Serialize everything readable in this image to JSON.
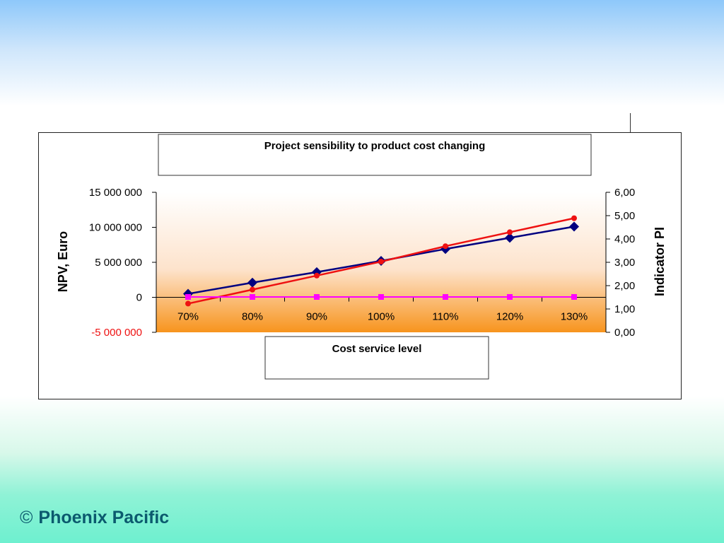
{
  "footer": {
    "copyright_symbol": "©",
    "brand": "Phoenix Pacific"
  },
  "colors": {
    "npv_series": "#000080",
    "pi_series": "#ee1111",
    "flat_series": "#ff00ff",
    "negative_label": "#ee1111",
    "plot_bg_top": "#ffffff",
    "plot_bg_bottom": "#f7941d"
  },
  "chart_data": {
    "type": "line",
    "title": "Project sensibility to product cost changing",
    "xlabel": "Cost service level",
    "ylabel": "NPV, Euro",
    "y2label": "Indicator PI",
    "categories": [
      "70%",
      "80%",
      "90%",
      "100%",
      "110%",
      "120%",
      "130%"
    ],
    "ylim": [
      -5000000,
      15000000
    ],
    "y_ticks": [
      "15 000 000",
      "10 000 000",
      "5 000 000",
      "0",
      "-5 000 000"
    ],
    "y_tick_values": [
      15000000,
      10000000,
      5000000,
      0,
      -5000000
    ],
    "y2lim": [
      0,
      6
    ],
    "y2_ticks": [
      "6,00",
      "5,00",
      "4,00",
      "3,00",
      "2,00",
      "1,00",
      "0,00"
    ],
    "y2_tick_values": [
      6,
      5,
      4,
      3,
      2,
      1,
      0
    ],
    "grid": false,
    "legend": "none",
    "series": [
      {
        "axis": "left",
        "color": "#000080",
        "marker": "diamond",
        "values": [
          500000,
          2100000,
          3600000,
          5200000,
          6900000,
          8500000,
          10100000
        ]
      },
      {
        "axis": "left",
        "color": "#ee1111",
        "marker": "circle",
        "values": [
          -900000,
          1100000,
          3100000,
          5100000,
          7300000,
          9300000,
          11300000
        ]
      },
      {
        "axis": "left",
        "color": "#ff00ff",
        "marker": "square",
        "values": [
          50000,
          50000,
          50000,
          50000,
          50000,
          50000,
          50000
        ]
      }
    ]
  }
}
